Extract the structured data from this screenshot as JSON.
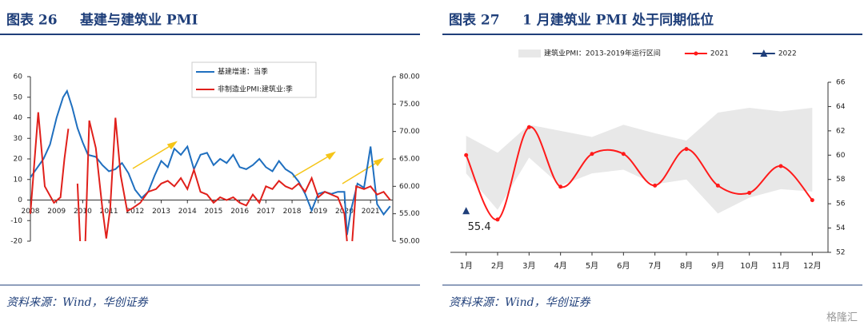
{
  "watermark": "格隆汇",
  "chart_data": [
    {
      "type": "line",
      "figure_label": "图表 26",
      "title": "基建与建筑业 PMI",
      "source": "资料来源：Wind，华创证券",
      "xlim": [
        2008,
        2021.85
      ],
      "xticks": [
        2008,
        2009,
        2010,
        2011,
        2012,
        2013,
        2014,
        2015,
        2016,
        2017,
        2018,
        2019,
        2020,
        2021
      ],
      "ylim": [
        -20,
        60
      ],
      "yticks": [
        -20,
        -10,
        0,
        10,
        20,
        30,
        40,
        50,
        60
      ],
      "y2lim": [
        50,
        80
      ],
      "y2ticks": [
        {
          "value": 50,
          "label": "50.00"
        },
        {
          "value": 55,
          "label": "55.00"
        },
        {
          "value": 60,
          "label": "60.00"
        },
        {
          "value": 65,
          "label": "65.00"
        },
        {
          "value": 70,
          "label": "70.00"
        },
        {
          "value": 75,
          "label": "75.00"
        },
        {
          "value": 80,
          "label": "80.00"
        }
      ],
      "series": [
        {
          "name": "基建增速：当季",
          "color": "#1f6fbf",
          "x": [
            2008.0,
            2008.5,
            2008.75,
            2009.0,
            2009.25,
            2009.4,
            2009.6,
            2009.8,
            2010.0,
            2010.2,
            2010.5,
            2010.75,
            2011.0,
            2011.25,
            2011.5,
            2011.75,
            2012.0,
            2012.25,
            2012.5,
            2012.75,
            2013.0,
            2013.25,
            2013.5,
            2013.75,
            2014.0,
            2014.25,
            2014.5,
            2014.75,
            2015.0,
            2015.25,
            2015.5,
            2015.75,
            2016.0,
            2016.25,
            2016.5,
            2016.75,
            2017.0,
            2017.25,
            2017.5,
            2017.75,
            2018.0,
            2018.25,
            2018.5,
            2018.75,
            2019.0,
            2019.25,
            2019.5,
            2019.75,
            2020.0,
            2020.1,
            2020.25,
            2020.5,
            2020.75,
            2021.0,
            2021.25,
            2021.5,
            2021.75
          ],
          "values": [
            11,
            20,
            27,
            40,
            50,
            53,
            45,
            35,
            28,
            22,
            21,
            17,
            14,
            15,
            18,
            13,
            5,
            1,
            4,
            12,
            19,
            16,
            25,
            22,
            26,
            15,
            22,
            23,
            17,
            20,
            18,
            22,
            16,
            15,
            17,
            20,
            16,
            14,
            19,
            15,
            13,
            9,
            3,
            -5,
            3,
            4,
            3,
            4,
            4,
            -17,
            -5,
            8,
            6,
            26,
            -2,
            -7,
            -3
          ]
        },
        {
          "name": "非制造业PMI:建筑业:季",
          "color": "#e0201b",
          "axis": "y2",
          "x": [
            2008.0,
            2008.3,
            2008.55,
            2008.9,
            2009.15,
            2009.3,
            2009.45,
            2009.6,
            2009.8,
            2009.9,
            2010.0,
            2010.1,
            2010.25,
            2010.5,
            2010.75,
            2010.9,
            2011.05,
            2011.25,
            2011.45,
            2011.7,
            2011.9,
            2012.2,
            2012.5,
            2012.8,
            2013.0,
            2013.25,
            2013.5,
            2013.75,
            2014.0,
            2014.25,
            2014.5,
            2014.75,
            2015.0,
            2015.25,
            2015.5,
            2015.75,
            2016.0,
            2016.25,
            2016.5,
            2016.75,
            2017.0,
            2017.25,
            2017.5,
            2017.75,
            2018.0,
            2018.25,
            2018.5,
            2018.75,
            2019.0,
            2019.25,
            2019.5,
            2019.75,
            2020.0,
            2020.1,
            2020.2,
            2020.3,
            2020.45,
            2020.75,
            2021.0,
            2021.25,
            2021.5,
            2021.75
          ],
          "values": [
            55,
            73.5,
            60,
            57,
            58,
            65,
            70.5,
            null,
            60.5,
            50,
            null,
            50,
            72,
            67,
            56,
            50.5,
            56,
            72.5,
            62,
            55.5,
            56,
            57,
            59,
            59.5,
            60.5,
            61,
            60,
            61.5,
            59.5,
            63,
            59,
            58.5,
            57,
            58,
            57.5,
            58,
            57,
            56.5,
            58.5,
            57,
            60,
            59.5,
            61,
            60,
            59.5,
            60.5,
            59,
            61.5,
            58,
            59,
            58.5,
            58,
            55,
            50,
            null,
            50,
            60,
            59.5,
            60,
            58.5,
            59,
            57.5
          ]
        }
      ]
    },
    {
      "type": "line",
      "figure_label": "图表 27",
      "title": "1 月建筑业 PMI 处于同期低位",
      "source": "资料来源：Wind，华创证券",
      "categories": [
        "1月",
        "2月",
        "3月",
        "4月",
        "5月",
        "6月",
        "7月",
        "8月",
        "9月",
        "10月",
        "11月",
        "12月"
      ],
      "ylim": [
        52,
        66
      ],
      "yticks": [
        52,
        54,
        56,
        58,
        60,
        62,
        64,
        66
      ],
      "y_axis_side": "right",
      "series": [
        {
          "name": "建筑业PMI：2013-2019年运行区间",
          "color": "#e8e8e8",
          "low": [
            58.5,
            55.5,
            59.8,
            57.5,
            58.5,
            58.8,
            57.6,
            58.0,
            55.2,
            56.5,
            57.2,
            57.0
          ],
          "high": [
            61.6,
            60.2,
            62.5,
            62.0,
            61.5,
            62.5,
            61.8,
            61.2,
            63.5,
            63.9,
            63.6,
            63.9
          ]
        },
        {
          "name": "2021",
          "color": "#ff1a1a",
          "smooth": true,
          "values": [
            60.0,
            54.7,
            62.3,
            57.4,
            60.1,
            60.1,
            57.5,
            60.5,
            57.5,
            56.9,
            59.1,
            56.3
          ]
        },
        {
          "name": "2022",
          "color": "#1f3f7a",
          "marker": "triangle",
          "values": [
            55.4,
            null,
            null,
            null,
            null,
            null,
            null,
            null,
            null,
            null,
            null,
            null
          ]
        }
      ]
    }
  ]
}
